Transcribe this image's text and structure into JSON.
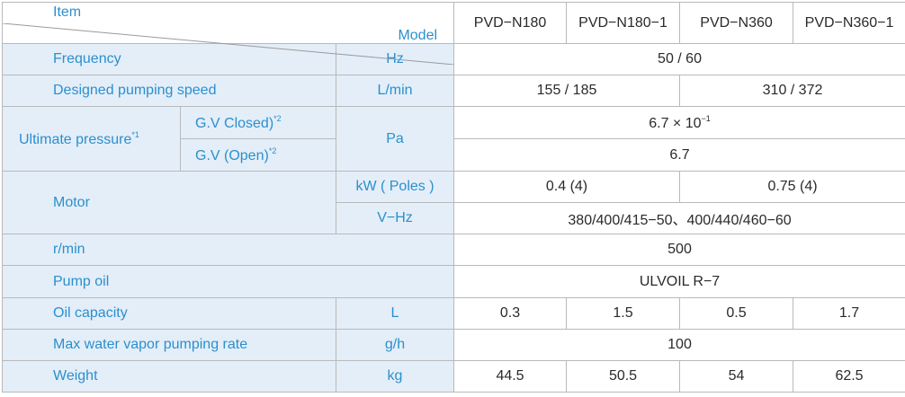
{
  "header": {
    "model_label": "Model",
    "item_label": "Item",
    "models": [
      "PVD−N180",
      "PVD−N180−1",
      "PVD−N360",
      "PVD−N360−1"
    ]
  },
  "rows": {
    "frequency": {
      "label": "Frequency",
      "unit": "Hz",
      "value": "50 / 60"
    },
    "speed": {
      "label": "Designed pumping speed",
      "unit": "L/min",
      "value_180": "155 / 185",
      "value_360": "310 / 372"
    },
    "ultimate": {
      "label": "Ultimate pressure",
      "label_sup": "*1",
      "closed_label": "G.V  Closed)",
      "closed_sup": "*2",
      "open_label": "G.V  (Open)",
      "open_sup": "*2",
      "unit": "Pa",
      "closed_value": "6.7 × 10",
      "closed_exp": "−1",
      "open_value": "6.7"
    },
    "motor": {
      "label": "Motor",
      "unit_power": "kW ( Poles )",
      "power_180": "0.4 (4)",
      "power_360": "0.75 (4)",
      "unit_voltage": "V−Hz",
      "voltage": "380/400/415−50、400/440/460−60"
    },
    "rmin": {
      "label": "r/min",
      "value": "500"
    },
    "oil": {
      "label": "Pump oil",
      "value": "ULVOIL  R−7"
    },
    "oil_capacity": {
      "label": "Oil capacity",
      "unit": "L",
      "values": [
        "0.3",
        "1.5",
        "0.5",
        "1.7"
      ]
    },
    "vapor": {
      "label": "Max water vapor pumping rate",
      "unit": "g/h",
      "value": "100"
    },
    "weight": {
      "label": "Weight",
      "unit": "kg",
      "values": [
        "44.5",
        "50.5",
        "54",
        "62.5"
      ]
    }
  },
  "colors": {
    "label_blue": "#2b8fce",
    "row_shade": "#e4eef8",
    "border": "#b9b9b9",
    "text": "#2a2a2a"
  }
}
